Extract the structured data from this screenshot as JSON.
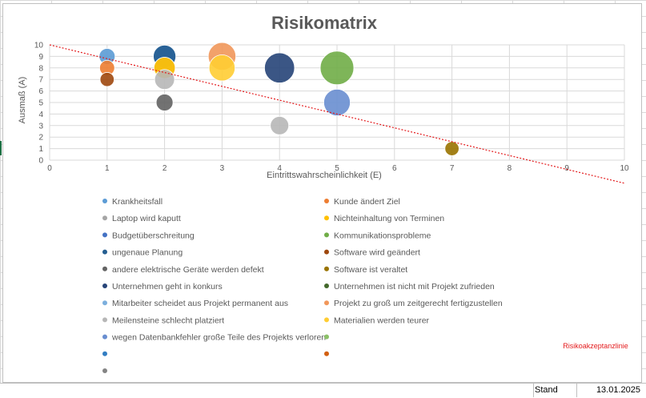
{
  "chart_data": {
    "type": "bubble",
    "title": "Risikomatrix",
    "xlabel": "Eintrittswahrscheinlichkeit (E)",
    "ylabel": "Ausmaß (A)",
    "xlim": [
      0,
      10
    ],
    "ylim": [
      0,
      10
    ],
    "x_ticks": [
      "0",
      "1",
      "2",
      "3",
      "4",
      "5",
      "6",
      "7",
      "8",
      "9",
      "10"
    ],
    "y_ticks": [
      "0",
      "1",
      "2",
      "3",
      "4",
      "5",
      "6",
      "7",
      "8",
      "9",
      "10"
    ],
    "grid": true,
    "legend_position": "bottom",
    "series": [
      {
        "name": "Krankheitsfall",
        "color": "#5b9bd5",
        "points": [
          {
            "x": 1,
            "y": 9,
            "size": 9
          }
        ]
      },
      {
        "name": "Kunde ändert Ziel",
        "color": "#ed7d31",
        "points": [
          {
            "x": 1,
            "y": 8,
            "size": 8
          }
        ]
      },
      {
        "name": "Laptop wird kaputt",
        "color": "#a5a5a5",
        "points": [
          {
            "x": 2,
            "y": 8,
            "size": 16
          }
        ]
      },
      {
        "name": "Nichteinhaltung von Terminen",
        "color": "#ffc000",
        "points": [
          {
            "x": 2,
            "y": 8,
            "size": 16
          }
        ]
      },
      {
        "name": "Budgetüberschreitung",
        "color": "#4472c4",
        "points": [
          {
            "x": 2,
            "y": 9,
            "size": 18
          }
        ]
      },
      {
        "name": "Kommunikationsprobleme",
        "color": "#70ad47",
        "points": [
          {
            "x": 5,
            "y": 8,
            "size": 40
          }
        ]
      },
      {
        "name": "ungenaue Planung",
        "color": "#255e91",
        "points": [
          {
            "x": 2,
            "y": 9,
            "size": 18
          }
        ]
      },
      {
        "name": "Software wird geändert",
        "color": "#9e480e",
        "points": [
          {
            "x": 1,
            "y": 7,
            "size": 7
          }
        ]
      },
      {
        "name": "andere elektrische Geräte werden defekt",
        "color": "#636363",
        "points": [
          {
            "x": 2,
            "y": 5,
            "size": 10
          }
        ]
      },
      {
        "name": "Software ist veraltet",
        "color": "#997300",
        "points": [
          {
            "x": 7,
            "y": 1,
            "size": 7
          }
        ]
      },
      {
        "name": "Unternehmen geht in konkurs",
        "color": "#264478",
        "points": [
          {
            "x": 4,
            "y": 8,
            "size": 32
          }
        ]
      },
      {
        "name": "Unternehmen ist nicht mit Projekt zufrieden",
        "color": "#43682b",
        "points": []
      },
      {
        "name": "Mitarbeiter scheidet aus Projekt permanent aus",
        "color": "#7cafdd",
        "points": []
      },
      {
        "name": "Projekt zu groß um zeitgerecht fertigzustellen",
        "color": "#f1975a",
        "points": [
          {
            "x": 3,
            "y": 9,
            "size": 27
          }
        ]
      },
      {
        "name": "Meilensteine schlecht platziert",
        "color": "#b7b7b7",
        "points": [
          {
            "x": 2,
            "y": 7,
            "size": 14
          },
          {
            "x": 4,
            "y": 3,
            "size": 12
          }
        ]
      },
      {
        "name": "Materialien werden teurer",
        "color": "#ffcd33",
        "points": [
          {
            "x": 3,
            "y": 8,
            "size": 24
          }
        ]
      },
      {
        "name": "wegen Datenbankfehler große Teile des Projekts verloren",
        "color": "#698ed0",
        "points": [
          {
            "x": 5,
            "y": 5,
            "size": 25
          }
        ]
      },
      {
        "name": "",
        "color": "#8cc168",
        "points": []
      },
      {
        "name": "",
        "color": "#327dc2",
        "points": []
      },
      {
        "name": "",
        "color": "#d26012",
        "points": []
      },
      {
        "name": "",
        "color": "#848484",
        "points": []
      }
    ],
    "reference_line": {
      "name": "Risikoakzeptanzlinie",
      "color": "#e31a1c",
      "from": [
        0,
        10
      ],
      "to": [
        10,
        -2
      ]
    }
  },
  "footer": {
    "stand_label": "Stand",
    "stand_date": "13.01.2025"
  }
}
